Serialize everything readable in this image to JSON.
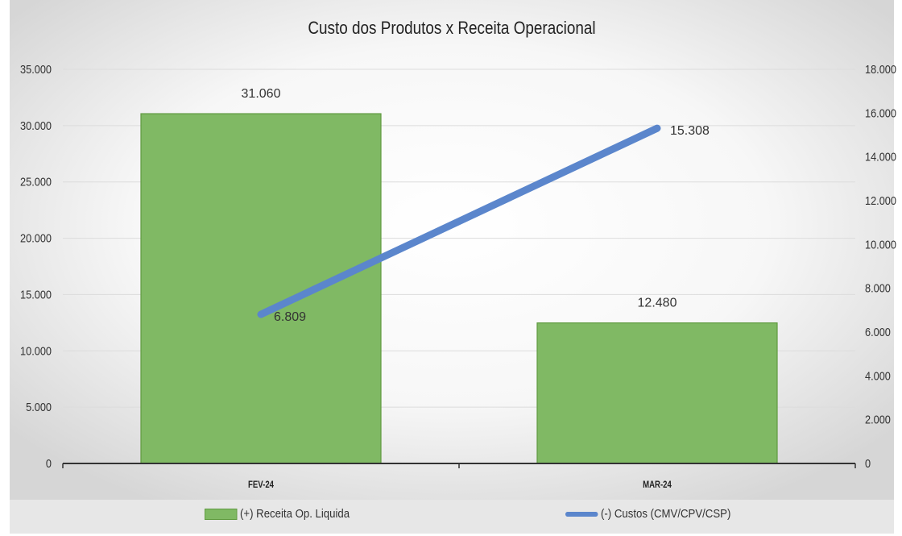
{
  "chart_data": {
    "type": "bar",
    "title": "Custo dos Produtos x Receita Operacional",
    "categories": [
      "FEV-24",
      "MAR-24"
    ],
    "series": [
      {
        "name": "(+) Receita Op. Liquida",
        "type": "bar",
        "axis": "left",
        "values": [
          31060,
          12480
        ],
        "value_labels": [
          "31.060",
          "12.480"
        ],
        "color": "#80b964"
      },
      {
        "name": "(-) Custos (CMV/CPV/CSP)",
        "type": "line",
        "axis": "right",
        "values": [
          6809,
          15308
        ],
        "value_labels": [
          "6.809",
          "15.308"
        ],
        "color": "#5b86cc"
      }
    ],
    "y_left": {
      "min": 0,
      "max": 35000,
      "ticks": [
        "0",
        "5.000",
        "10.000",
        "15.000",
        "20.000",
        "25.000",
        "30.000",
        "35.000"
      ]
    },
    "y_right": {
      "min": 0,
      "max": 18000,
      "ticks": [
        "0",
        "2.000",
        "4.000",
        "6.000",
        "8.000",
        "10.000",
        "12.000",
        "14.000",
        "16.000",
        "18.000"
      ]
    },
    "grid": true,
    "legend_position": "bottom"
  }
}
